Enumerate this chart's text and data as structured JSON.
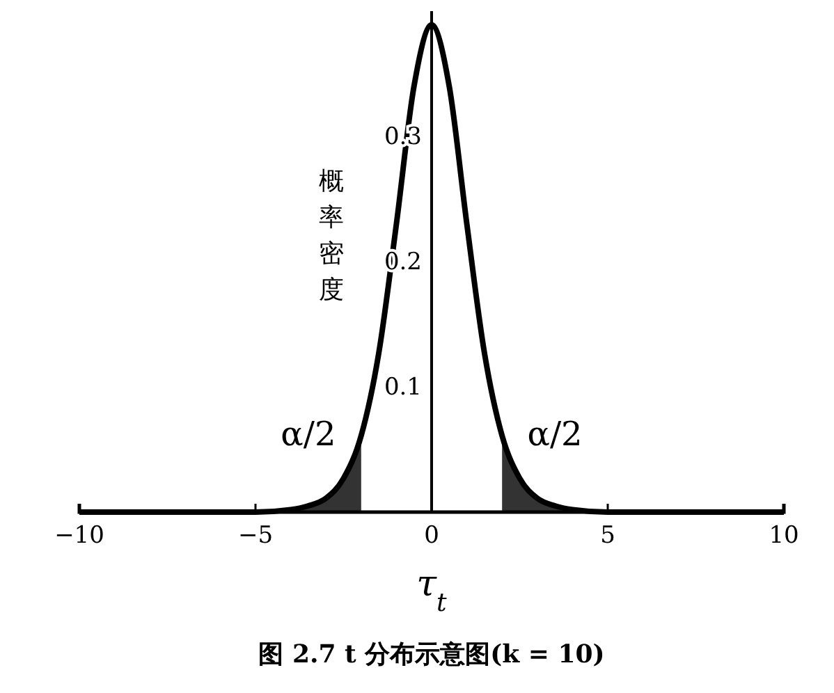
{
  "chart_data": {
    "type": "line",
    "title": "图 2.7  t 分布示意图(k = 10)",
    "xlabel": "τ$_{t}$",
    "ylabel": "概率密度",
    "xlim": [
      -10,
      10
    ],
    "xticks": [
      -10,
      -5,
      0,
      5,
      10
    ],
    "ylim": [
      0,
      0.4
    ],
    "yticks": [
      0.1,
      0.2,
      0.3
    ],
    "marker": "none",
    "line_style": "solid",
    "series": [
      {
        "color": "#000000",
        "x": [
          -10,
          -6,
          -5,
          -4,
          -3.5,
          -3,
          -2.5,
          -2,
          -1.5,
          -1,
          -0.5,
          0,
          0.5,
          1,
          1.5,
          2,
          2.5,
          3,
          3.5,
          4,
          5,
          6,
          10
        ],
        "values": [
          0,
          0,
          0,
          0.002,
          0.005,
          0.011,
          0.027,
          0.061,
          0.127,
          0.23,
          0.34,
          0.389,
          0.34,
          0.23,
          0.127,
          0.061,
          0.027,
          0.011,
          0.005,
          0.002,
          0,
          0,
          0
        ]
      },
      {
        "type": "area",
        "color": "#333333",
        "x": [
          -5,
          -4,
          -3.5,
          -3,
          -2.5,
          -2
        ],
        "values": [
          0,
          0.002,
          0.005,
          0.011,
          0.027,
          0.061
        ]
      },
      {
        "type": "area",
        "color": "#333333",
        "x": [
          2,
          2.5,
          3,
          3.5,
          4,
          5
        ],
        "values": [
          0.061,
          0.027,
          0.011,
          0.005,
          0.002,
          0
        ]
      }
    ],
    "annotations": [
      "α/2",
      "α/2"
    ]
  }
}
